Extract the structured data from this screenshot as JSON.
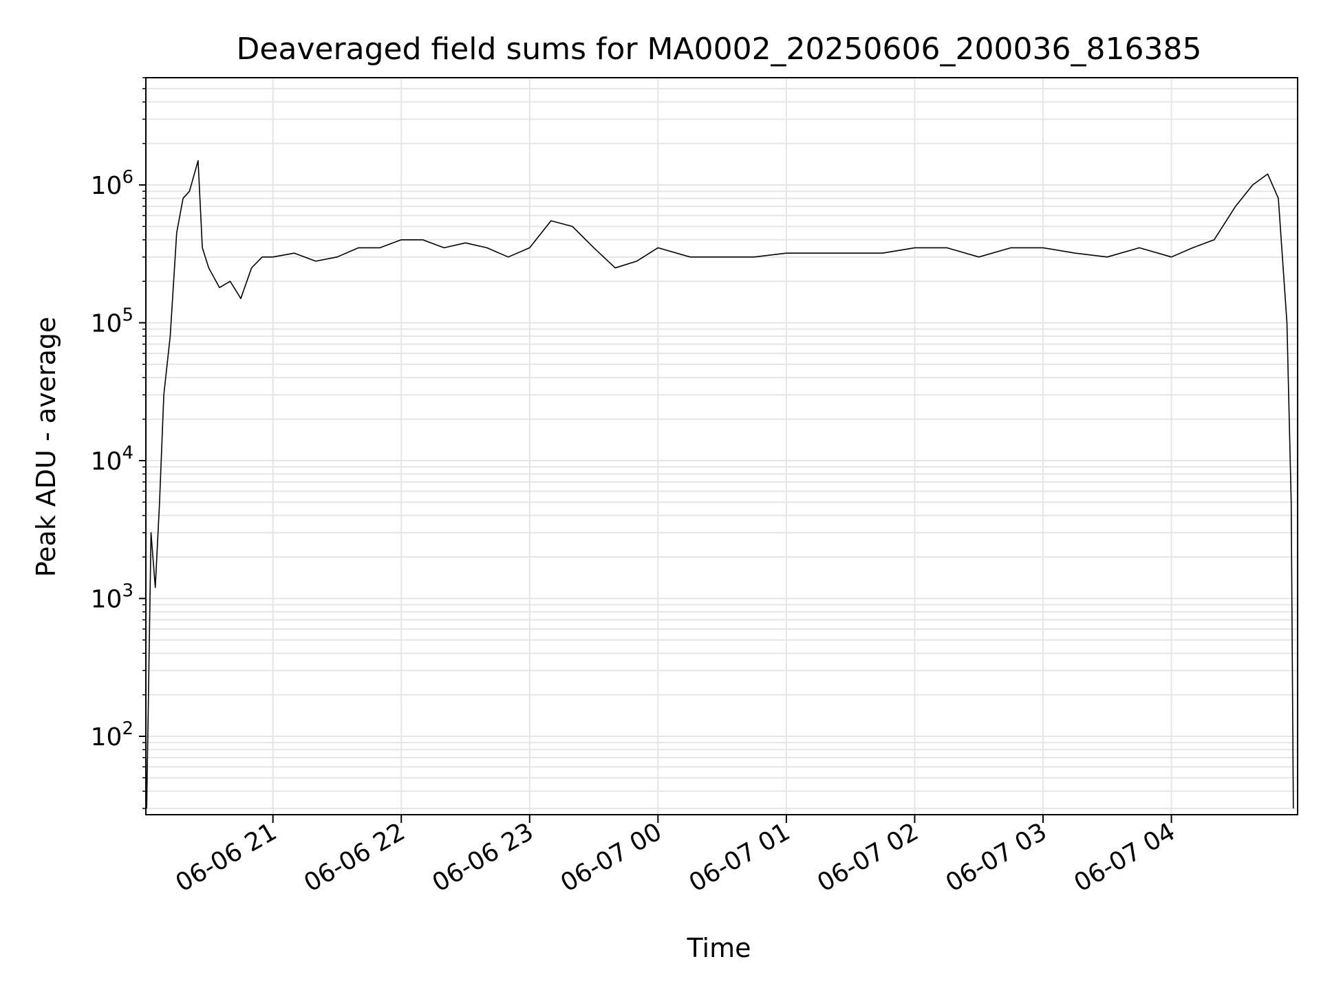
{
  "chart_data": {
    "type": "line",
    "title": "Deaveraged field sums for MA0002_20250606_200036_816385",
    "xlabel": "Time",
    "ylabel": "Peak ADU - average",
    "y_scale": "log",
    "ylim": [
      27,
      6000000
    ],
    "xlim": [
      "2025-06-06 20:00:36",
      "2025-06-07 04:59:00"
    ],
    "grid": true,
    "line_color": "#000000",
    "grid_color": "#e5e5e5",
    "x_ticks": [
      {
        "value": "2025-06-06 21:00",
        "label": "06-06 21"
      },
      {
        "value": "2025-06-06 22:00",
        "label": "06-06 22"
      },
      {
        "value": "2025-06-06 23:00",
        "label": "06-06 23"
      },
      {
        "value": "2025-06-07 00:00",
        "label": "06-07 00"
      },
      {
        "value": "2025-06-07 01:00",
        "label": "06-07 01"
      },
      {
        "value": "2025-06-07 02:00",
        "label": "06-07 02"
      },
      {
        "value": "2025-06-07 03:00",
        "label": "06-07 03"
      },
      {
        "value": "2025-06-07 04:00",
        "label": "06-07 04"
      }
    ],
    "y_ticks": [
      {
        "value": 100,
        "base": "10",
        "exp": "2"
      },
      {
        "value": 1000,
        "base": "10",
        "exp": "3"
      },
      {
        "value": 10000,
        "base": "10",
        "exp": "4"
      },
      {
        "value": 100000,
        "base": "10",
        "exp": "5"
      },
      {
        "value": 1000000,
        "base": "10",
        "exp": "6"
      }
    ],
    "series": [
      {
        "x": [
          "2025-06-06 20:01",
          "2025-06-06 20:03",
          "2025-06-06 20:05",
          "2025-06-06 20:07",
          "2025-06-06 20:09",
          "2025-06-06 20:12",
          "2025-06-06 20:15",
          "2025-06-06 20:18",
          "2025-06-06 20:21",
          "2025-06-06 20:25",
          "2025-06-06 20:27",
          "2025-06-06 20:30",
          "2025-06-06 20:35",
          "2025-06-06 20:40",
          "2025-06-06 20:45",
          "2025-06-06 20:50",
          "2025-06-06 20:55",
          "2025-06-06 21:00",
          "2025-06-06 21:10",
          "2025-06-06 21:20",
          "2025-06-06 21:30",
          "2025-06-06 21:40",
          "2025-06-06 21:50",
          "2025-06-06 22:00",
          "2025-06-06 22:10",
          "2025-06-06 22:20",
          "2025-06-06 22:30",
          "2025-06-06 22:40",
          "2025-06-06 22:50",
          "2025-06-06 23:00",
          "2025-06-06 23:10",
          "2025-06-06 23:20",
          "2025-06-06 23:30",
          "2025-06-06 23:40",
          "2025-06-06 23:50",
          "2025-06-07 00:00",
          "2025-06-07 00:15",
          "2025-06-07 00:30",
          "2025-06-07 00:45",
          "2025-06-07 01:00",
          "2025-06-07 01:15",
          "2025-06-07 01:30",
          "2025-06-07 01:45",
          "2025-06-07 02:00",
          "2025-06-07 02:15",
          "2025-06-07 02:30",
          "2025-06-07 02:45",
          "2025-06-07 03:00",
          "2025-06-07 03:15",
          "2025-06-07 03:30",
          "2025-06-07 03:45",
          "2025-06-07 04:00",
          "2025-06-07 04:10",
          "2025-06-07 04:20",
          "2025-06-07 04:30",
          "2025-06-07 04:38",
          "2025-06-07 04:45",
          "2025-06-07 04:50",
          "2025-06-07 04:54",
          "2025-06-07 04:56",
          "2025-06-07 04:57"
        ],
        "y": [
          30,
          3000,
          1200,
          5000,
          30000,
          80000,
          450000,
          800000,
          900000,
          1500000,
          350000,
          250000,
          180000,
          200000,
          150000,
          250000,
          300000,
          300000,
          320000,
          280000,
          300000,
          350000,
          350000,
          400000,
          400000,
          350000,
          380000,
          350000,
          300000,
          350000,
          550000,
          500000,
          350000,
          250000,
          280000,
          350000,
          300000,
          300000,
          300000,
          320000,
          320000,
          320000,
          320000,
          350000,
          350000,
          300000,
          350000,
          350000,
          320000,
          300000,
          350000,
          300000,
          350000,
          400000,
          700000,
          1000000,
          1200000,
          800000,
          100000,
          5000,
          30
        ]
      }
    ]
  }
}
